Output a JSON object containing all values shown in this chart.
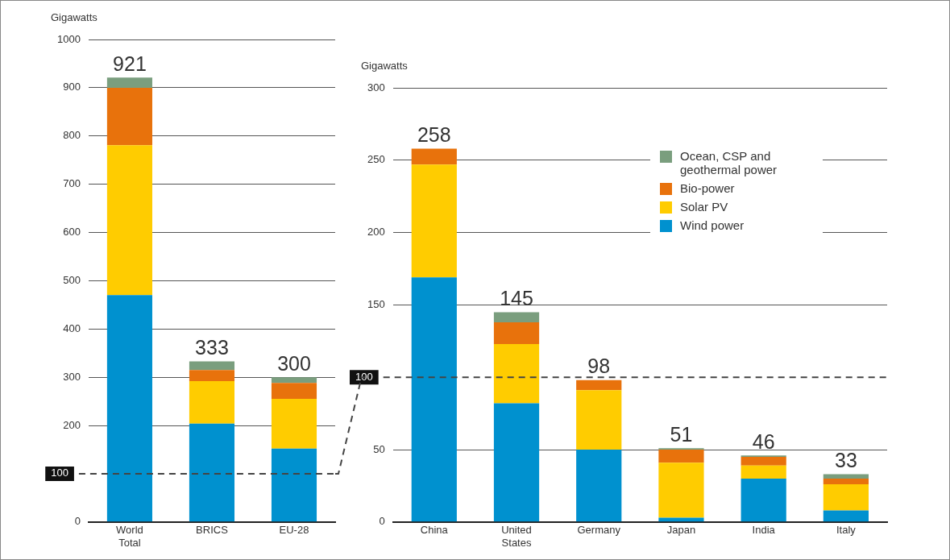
{
  "chart_data": [
    {
      "type": "bar",
      "ylabel": "Gigawatts",
      "categories": [
        "World Total",
        "BRICS",
        "EU-28"
      ],
      "stacked": true,
      "legend": false,
      "grid": "y",
      "ylim": [
        0,
        1000
      ],
      "yticks": [
        0,
        200,
        300,
        400,
        500,
        600,
        700,
        800,
        900,
        1000
      ],
      "series": [
        {
          "color": "#0091cf",
          "values": [
            470,
            204,
            152
          ]
        },
        {
          "color": "#ffcc00",
          "values": [
            311,
            88,
            103
          ]
        },
        {
          "color": "#e8720c",
          "values": [
            119,
            23,
            33
          ]
        },
        {
          "color": "#7a9e7e",
          "values": [
            21,
            18,
            12
          ]
        }
      ],
      "totals": [
        "921",
        "333",
        "300"
      ],
      "ref_lines": [
        {
          "axis": "y",
          "value": 100,
          "label": "100",
          "line_style": "dashed"
        }
      ]
    },
    {
      "type": "bar",
      "ylabel": "Gigawatts",
      "categories": [
        "China",
        "United States",
        "Germany",
        "Japan",
        "India",
        "Italy"
      ],
      "stacked": true,
      "legend": "top right",
      "grid": "y",
      "ylim": [
        0,
        300
      ],
      "yticks": [
        0,
        50,
        150,
        200,
        250,
        300
      ],
      "series": [
        {
          "name": "Wind power",
          "color": "#0091cf",
          "values": [
            169,
            82,
            50,
            3,
            30,
            8
          ]
        },
        {
          "name": "Solar PV",
          "color": "#ffcc00",
          "values": [
            78,
            41,
            41,
            38,
            9,
            18
          ]
        },
        {
          "name": "Bio-power",
          "color": "#e8720c",
          "values": [
            11,
            15,
            7,
            9,
            6,
            4
          ]
        },
        {
          "name": "Ocean, CSP and geothermal power",
          "color": "#7a9e7e",
          "values": [
            0,
            7,
            0,
            1,
            1,
            3
          ]
        }
      ],
      "totals": [
        "258",
        "145",
        "98",
        "51",
        "46",
        "33"
      ],
      "ref_lines": [
        {
          "axis": "y",
          "value": 100,
          "label": "100",
          "line_style": "dashed"
        }
      ]
    }
  ]
}
